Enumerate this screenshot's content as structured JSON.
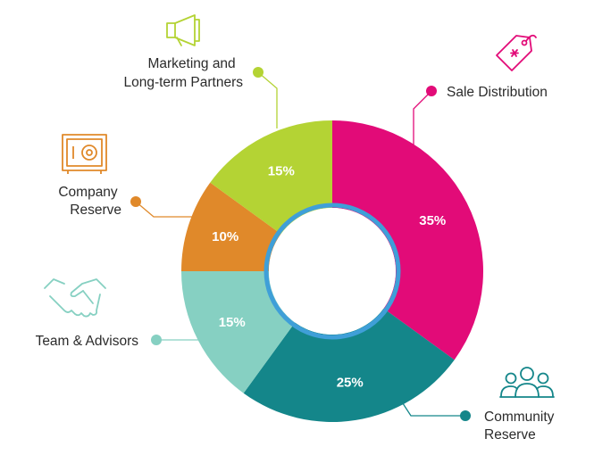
{
  "chart_data": {
    "type": "pie",
    "donut": true,
    "categories": [
      "Sale Distribution",
      "Community Reserve",
      "Team & Advisors",
      "Company Reserve",
      "Marketing and Long-term Partners"
    ],
    "values": [
      35,
      25,
      15,
      10,
      15
    ],
    "value_labels": [
      "35%",
      "25%",
      "15%",
      "10%",
      "15%"
    ],
    "label_lines": [
      [
        "Sale Distribution"
      ],
      [
        "Community",
        "Reserve"
      ],
      [
        "Team & Advisors"
      ],
      [
        "Company",
        "Reserve"
      ],
      [
        "Marketing and",
        "Long-term Partners"
      ]
    ],
    "colors": [
      "#e20b78",
      "#14868a",
      "#86d0c2",
      "#e0892a",
      "#b4d334"
    ],
    "icons": [
      "price-tag-icon",
      "people-group-icon",
      "handshake-icon",
      "safe-icon",
      "megaphone-icon"
    ],
    "title": "",
    "legend": "none"
  }
}
